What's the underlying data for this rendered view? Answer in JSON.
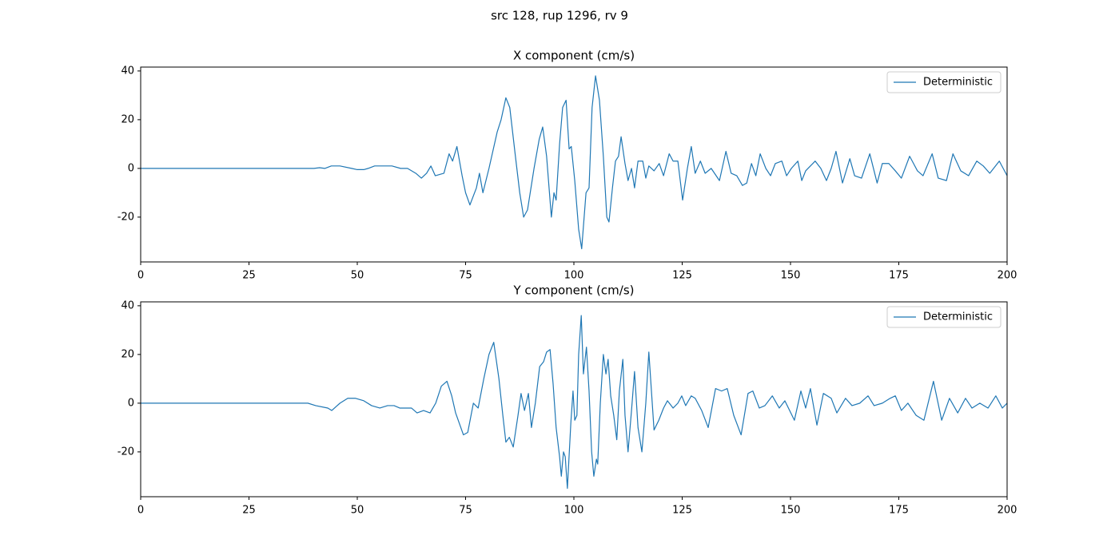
{
  "title": "src 128, rup 1296, rv 9",
  "chart_data": [
    {
      "type": "line",
      "title": "X component (cm/s)",
      "x": [
        0,
        40,
        41.3,
        42.5,
        44,
        46,
        48.7,
        50,
        51.5,
        52.5,
        54,
        58,
        60,
        61.6,
        63.5,
        64.8,
        66,
        67,
        68,
        70,
        71.2,
        72,
        73,
        74.2,
        75,
        76,
        77.5,
        78.2,
        79,
        80.4,
        82.3,
        83.2,
        84.3,
        85.2,
        86.5,
        87.5,
        88.4,
        89.3,
        90.8,
        92,
        92.8,
        93.7,
        94.8,
        95.4,
        95.9,
        96.7,
        97.4,
        98.2,
        98.9,
        99.4,
        100.2,
        101.1,
        101.8,
        102.8,
        103.5,
        104.2,
        105,
        105.9,
        106.8,
        107.6,
        108.1,
        108.9,
        109.6,
        110.3,
        110.9,
        111.8,
        112.5,
        113.3,
        114,
        114.8,
        115.9,
        116.6,
        117.3,
        118.5,
        119.7,
        120.7,
        122,
        122.9,
        124,
        125.1,
        126.2,
        127.1,
        128,
        129.2,
        130.3,
        131.7,
        133.6,
        135.1,
        136.3,
        137.6,
        138.9,
        139.9,
        141,
        142,
        143,
        144.3,
        145.4,
        146.5,
        148,
        149.1,
        150.2,
        151.7,
        152.6,
        153.5,
        154.6,
        155.7,
        157,
        158.3,
        159.4,
        160.5,
        162,
        163.7,
        164.8,
        166.4,
        168.3,
        170,
        171.2,
        172.7,
        174.2,
        175.6,
        177.5,
        179.3,
        180.6,
        182.7,
        184.1,
        186,
        187.5,
        189.3,
        191.1,
        193,
        194.5,
        196,
        198.2,
        200
      ],
      "series": [
        {
          "name": "Deterministic",
          "color": "#1f77b4",
          "values": [
            0,
            0,
            0.3,
            0,
            1,
            1,
            0,
            -0.5,
            -0.5,
            0,
            1,
            1,
            0,
            0,
            -2,
            -4,
            -2,
            1,
            -3,
            -2,
            6,
            3,
            9,
            -3,
            -10,
            -15,
            -8,
            -2,
            -10,
            0,
            15,
            20,
            29,
            25,
            5,
            -10,
            -20,
            -17,
            0,
            12,
            17,
            5,
            -20,
            -10,
            -13,
            10,
            25,
            28,
            8,
            9,
            -5,
            -25,
            -33,
            -10,
            -8,
            25,
            38,
            28,
            5,
            -20,
            -22,
            -8,
            3,
            5,
            13,
            2,
            -5,
            0,
            -8,
            3,
            3,
            -4,
            1,
            -1,
            2,
            -3,
            6,
            3,
            3,
            -13,
            0,
            9,
            -2,
            3,
            -2,
            0,
            -5,
            7,
            -2,
            -3,
            -7,
            -6,
            2,
            -3,
            6,
            0,
            -3,
            2,
            3,
            -3,
            0,
            3,
            -5,
            -1,
            1,
            3,
            0,
            -5,
            0,
            7,
            -6,
            4,
            -3,
            -4,
            6,
            -6,
            2,
            2,
            -1,
            -4,
            5,
            -1,
            -3,
            6,
            -4,
            -5,
            6,
            -1,
            -3,
            3,
            1,
            -2,
            3,
            -3
          ]
        }
      ],
      "xlim": [
        0,
        200
      ],
      "ylim": [
        -38.4,
        41.6
      ],
      "xticks": [
        0,
        25,
        50,
        75,
        100,
        125,
        150,
        175,
        200
      ],
      "yticks": [
        -20,
        0,
        20,
        40
      ],
      "legend": "upper right"
    },
    {
      "type": "line",
      "title": "Y component (cm/s)",
      "x": [
        0,
        38.6,
        40.4,
        43.2,
        44.1,
        46,
        47.8,
        49.6,
        51.5,
        53.3,
        55.2,
        57,
        58.5,
        59.8,
        62.5,
        63.8,
        65.3,
        66.8,
        68.1,
        69.4,
        70.7,
        71.8,
        72.7,
        74.5,
        75.5,
        76.8,
        77.9,
        79.2,
        80.4,
        81.5,
        82.7,
        83.6,
        84.3,
        85.1,
        86,
        87.1,
        87.8,
        88.6,
        89.5,
        90.2,
        91.1,
        92.1,
        93,
        93.7,
        94.5,
        95.2,
        95.9,
        96.7,
        97.1,
        97.6,
        98,
        98.5,
        99.3,
        99.8,
        100.2,
        100.7,
        101.1,
        101.7,
        102.2,
        102.9,
        103.5,
        104.1,
        104.6,
        105.2,
        105.5,
        106.1,
        106.8,
        107.4,
        107.9,
        108.5,
        109.2,
        109.9,
        110.5,
        111.3,
        111.8,
        112.5,
        113.3,
        114,
        114.8,
        115.7,
        116.6,
        117.3,
        118.5,
        119.6,
        120.7,
        121.6,
        122.9,
        124,
        124.9,
        125.8,
        127.1,
        128,
        129.5,
        131,
        132.7,
        134.1,
        135.4,
        136.9,
        138.6,
        140.2,
        141.3,
        142.8,
        144.1,
        145.8,
        147.4,
        148.7,
        150.9,
        152.4,
        153.5,
        154.6,
        156.1,
        157.6,
        159.4,
        160.7,
        162.7,
        164.2,
        166,
        167.9,
        169.3,
        171.2,
        173,
        174.2,
        175.6,
        177.1,
        179,
        180.8,
        183,
        184.9,
        186.7,
        188.6,
        190.4,
        191.9,
        193.7,
        195.6,
        197.4,
        198.9,
        200
      ],
      "series": [
        {
          "name": "Deterministic",
          "color": "#1f77b4",
          "values": [
            0,
            0,
            -1,
            -2,
            -3,
            0,
            2,
            2,
            1,
            -1,
            -2,
            -1,
            -1,
            -2,
            -2,
            -4,
            -3,
            -4,
            0,
            7,
            9,
            3,
            -4,
            -13,
            -12,
            0,
            -2,
            10,
            20,
            25,
            10,
            -5,
            -16,
            -14,
            -18,
            -5,
            4,
            -3,
            4,
            -10,
            0,
            15,
            17,
            21,
            22,
            8,
            -10,
            -22,
            -30,
            -20,
            -22,
            -35,
            -8,
            5,
            -7,
            -5,
            20,
            36,
            12,
            23,
            5,
            -20,
            -30,
            -23,
            -25,
            0,
            20,
            12,
            18,
            3,
            -5,
            -15,
            5,
            18,
            -5,
            -20,
            -3,
            13,
            -10,
            -20,
            0,
            21,
            -11,
            -7,
            -2,
            1,
            -2,
            0,
            3,
            -1,
            3,
            2,
            -3,
            -10,
            6,
            5,
            6,
            -5,
            -13,
            4,
            5,
            -2,
            -1,
            3,
            -2,
            1,
            -7,
            5,
            -2,
            6,
            -9,
            4,
            2,
            -4,
            2,
            -1,
            0,
            3,
            -1,
            0,
            2,
            3,
            -3,
            0,
            -5,
            -7,
            9,
            -7,
            2,
            -4,
            2,
            -2,
            0,
            -2,
            3,
            -2,
            0
          ]
        }
      ],
      "xlim": [
        0,
        200
      ],
      "ylim": [
        -38.4,
        41.6
      ],
      "xticks": [
        0,
        25,
        50,
        75,
        100,
        125,
        150,
        175,
        200
      ],
      "yticks": [
        -20,
        0,
        20,
        40
      ],
      "legend": "upper right"
    }
  ]
}
